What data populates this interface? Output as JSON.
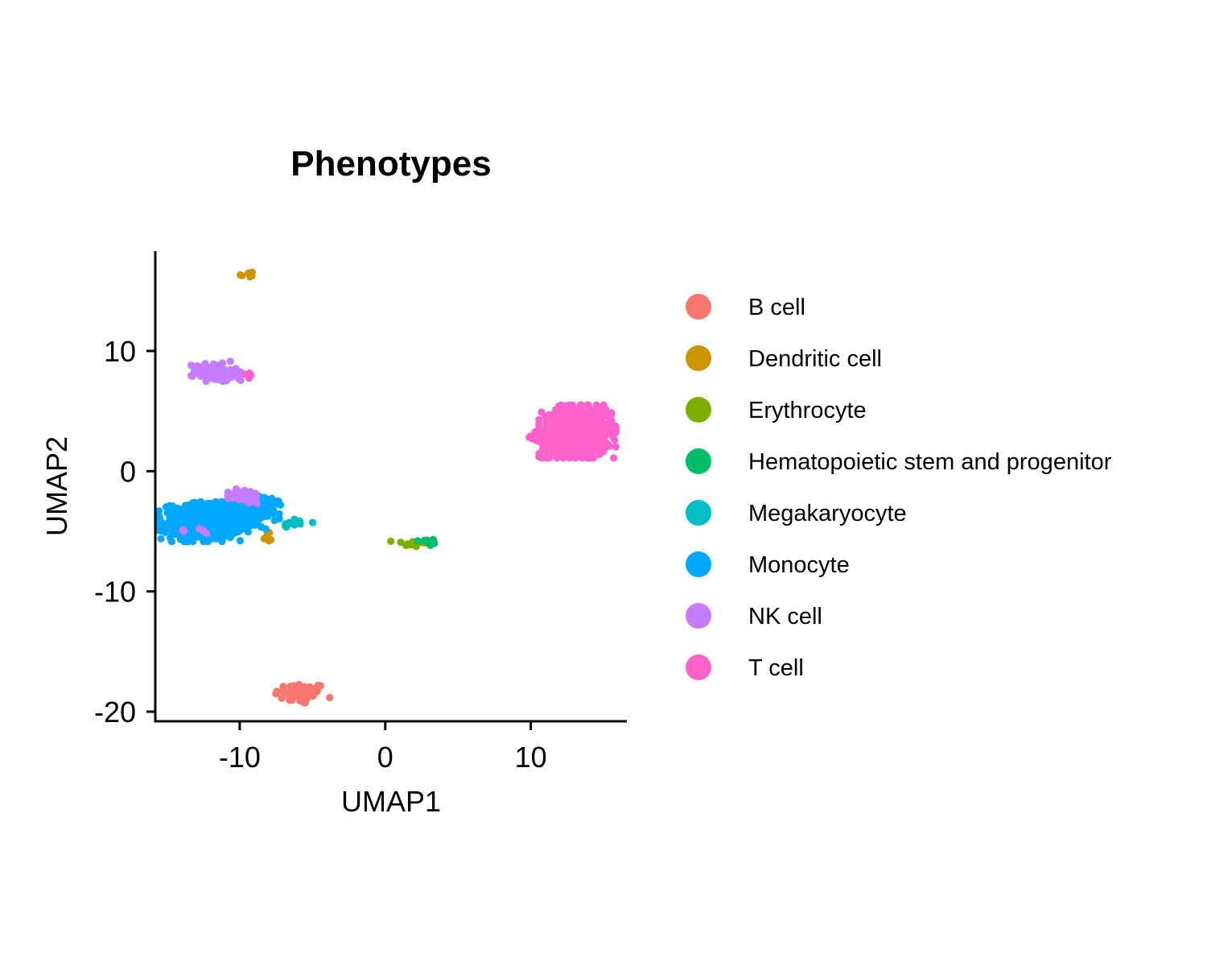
{
  "chart_data": {
    "type": "scatter",
    "title": "Phenotypes",
    "xlabel": "UMAP1",
    "ylabel": "UMAP2",
    "xlim": [
      -15.8,
      16.6
    ],
    "ylim": [
      -20.8,
      18.3
    ],
    "xticks": [
      -10,
      0,
      10
    ],
    "yticks": [
      -20,
      -10,
      0,
      10
    ],
    "tick_labels_x": [
      "-10",
      "0",
      "10"
    ],
    "tick_labels_y": [
      "-20",
      "-10",
      "0",
      "10"
    ],
    "grid": false,
    "legend_position": "right",
    "series": [
      {
        "name": "B cell",
        "color": "#F8766D",
        "clusters": [
          {
            "cx": -5.8,
            "cy": -18.5,
            "sx": 0.9,
            "sy": 0.45,
            "n": 70
          }
        ]
      },
      {
        "name": "Dendritic cell",
        "color": "#CD9600",
        "clusters": [
          {
            "cx": -9.5,
            "cy": 16.4,
            "sx": 0.25,
            "sy": 0.2,
            "n": 6
          },
          {
            "cx": -8.1,
            "cy": -5.5,
            "sx": 0.2,
            "sy": 0.25,
            "n": 6
          }
        ]
      },
      {
        "name": "Erythrocyte",
        "color": "#7CAE00",
        "clusters": [
          {
            "cx": 1.7,
            "cy": -6.0,
            "sx": 0.6,
            "sy": 0.15,
            "n": 14
          }
        ]
      },
      {
        "name": "Hematopoietic stem and progenitor",
        "color": "#00BE67",
        "clusters": [
          {
            "cx": 3.0,
            "cy": -5.9,
            "sx": 0.35,
            "sy": 0.22,
            "n": 12
          }
        ]
      },
      {
        "name": "Megakaryocyte",
        "color": "#00BFC4",
        "clusters": [
          {
            "cx": -6.2,
            "cy": -4.3,
            "sx": 0.55,
            "sy": 0.2,
            "n": 12
          }
        ]
      },
      {
        "name": "Monocyte",
        "color": "#00A9FF",
        "clusters": [
          {
            "cx": -12.5,
            "cy": -4.2,
            "sx": 1.4,
            "sy": 0.75,
            "n": 520
          },
          {
            "cx": -9.7,
            "cy": -3.6,
            "sx": 1.1,
            "sy": 0.55,
            "n": 150
          },
          {
            "cx": -8.3,
            "cy": -2.8,
            "sx": 0.5,
            "sy": 0.45,
            "n": 40
          }
        ]
      },
      {
        "name": "NK cell",
        "color": "#C77CFF",
        "clusters": [
          {
            "cx": -11.8,
            "cy": 8.3,
            "sx": 0.7,
            "sy": 0.38,
            "n": 120
          },
          {
            "cx": -10.4,
            "cy": 8.0,
            "sx": 0.5,
            "sy": 0.25,
            "n": 25
          },
          {
            "cx": -9.6,
            "cy": -2.1,
            "sx": 0.55,
            "sy": 0.3,
            "n": 40
          },
          {
            "cx": -12.5,
            "cy": -5.0,
            "sx": 0.15,
            "sy": 0.2,
            "n": 4
          },
          {
            "cx": -13.9,
            "cy": -4.9,
            "sx": 0.12,
            "sy": 0.12,
            "n": 3
          }
        ]
      },
      {
        "name": "T cell",
        "color": "#FF61CC",
        "clusters": [
          {
            "cx": 13.2,
            "cy": 3.3,
            "sx": 1.2,
            "sy": 1.0,
            "n": 700
          },
          {
            "cx": 11.2,
            "cy": 2.8,
            "sx": 0.6,
            "sy": 0.3,
            "n": 60
          },
          {
            "cx": -9.3,
            "cy": 7.9,
            "sx": 0.15,
            "sy": 0.15,
            "n": 4
          }
        ]
      }
    ]
  }
}
